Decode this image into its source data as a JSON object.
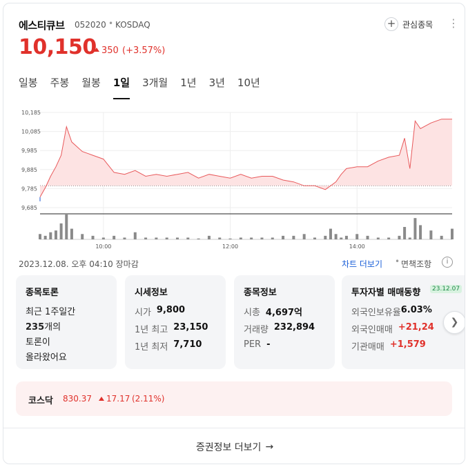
{
  "header": {
    "stock_name": "에스티큐브",
    "stock_code": "052020",
    "separator": "•",
    "market": "KOSDAQ",
    "watch_label": "관심종목",
    "price": "10,150",
    "change": "350",
    "change_pct": "(+3.57%)",
    "colors": {
      "up": "#e0312b"
    }
  },
  "tabs": [
    {
      "label": "일봉",
      "active": false
    },
    {
      "label": "주봉",
      "active": false
    },
    {
      "label": "월봉",
      "active": false
    },
    {
      "label": "1일",
      "active": true
    },
    {
      "label": "3개월",
      "active": false
    },
    {
      "label": "1년",
      "active": false
    },
    {
      "label": "3년",
      "active": false
    },
    {
      "label": "10년",
      "active": false
    }
  ],
  "chart_data": {
    "type": "area",
    "y_ticks": [
      "10,185",
      "10,085",
      "9,985",
      "9,885",
      "9,785",
      "9,685"
    ],
    "ylim": [
      9685,
      10185
    ],
    "x_ticks": [
      "10:00",
      "12:00",
      "14:00"
    ],
    "previous_close": 9800,
    "x": [
      "09:00",
      "09:05",
      "09:10",
      "09:15",
      "09:20",
      "09:25",
      "09:30",
      "09:40",
      "09:50",
      "10:00",
      "10:10",
      "10:20",
      "10:30",
      "10:40",
      "10:50",
      "11:00",
      "11:10",
      "11:20",
      "11:30",
      "11:40",
      "11:50",
      "12:00",
      "12:10",
      "12:20",
      "12:30",
      "12:40",
      "12:50",
      "13:00",
      "13:10",
      "13:20",
      "13:30",
      "13:35",
      "13:40",
      "13:45",
      "13:50",
      "14:00",
      "14:10",
      "14:20",
      "14:30",
      "14:40",
      "14:45",
      "14:50",
      "14:55",
      "15:00",
      "15:10",
      "15:20",
      "15:30"
    ],
    "price": [
      9740,
      9790,
      9850,
      9900,
      9960,
      10110,
      10030,
      9980,
      9960,
      9940,
      9870,
      9860,
      9880,
      9850,
      9860,
      9850,
      9860,
      9870,
      9840,
      9860,
      9850,
      9840,
      9860,
      9840,
      9850,
      9850,
      9830,
      9820,
      9800,
      9800,
      9780,
      9800,
      9820,
      9860,
      9890,
      9900,
      9900,
      9930,
      9950,
      9960,
      10050,
      9890,
      10140,
      10100,
      10130,
      10150,
      10150
    ],
    "volume": [
      3,
      2,
      4,
      5,
      9,
      14,
      6,
      3,
      2,
      1,
      2,
      1,
      4,
      1,
      1,
      1,
      1,
      1,
      0.5,
      2,
      1,
      0.5,
      1,
      1,
      1,
      1,
      2,
      2,
      3,
      1,
      2,
      6,
      3,
      1,
      2,
      3,
      2,
      1,
      1,
      2,
      7,
      1,
      12,
      8,
      5,
      2,
      6
    ]
  },
  "status": {
    "datetime": "2023.12.08. 오후 04:10 장마감",
    "chart_more": "차트 더보기",
    "bullet": "•",
    "disclaimer": "면책조항",
    "info_icon": "i"
  },
  "forum": {
    "title": "종목토론",
    "line1": "최근 1주일간",
    "count": "235",
    "line2": "개의",
    "line3": "토론이",
    "line4": "올라왔어요"
  },
  "quote_info": {
    "title": "시세정보",
    "rows": [
      {
        "k": "시가",
        "v": "9,800"
      },
      {
        "k": "1년 최고",
        "v": "23,150"
      },
      {
        "k": "1년 최저",
        "v": "7,710"
      }
    ]
  },
  "stock_info": {
    "title": "종목정보",
    "rows": [
      {
        "k": "시총",
        "v": "4,697억"
      },
      {
        "k": "거래량",
        "v": "232,894"
      },
      {
        "k": "PER",
        "v": "-"
      }
    ]
  },
  "investor": {
    "title": "투자자별 매매동향",
    "date_badge": "23.12.07",
    "rows": [
      {
        "k": "외국인보유율",
        "v": "6.03%"
      },
      {
        "k": "외국인매매",
        "v": "+21,24"
      },
      {
        "k": "기관매매",
        "v": "+1,579"
      }
    ]
  },
  "next_icon": "chevron-right",
  "index": {
    "name": "코스닥",
    "value": "830.37",
    "change": "17.17",
    "pct": "(2.11%)"
  },
  "footer": {
    "label": "증권정보 더보기",
    "arrow": "→"
  }
}
